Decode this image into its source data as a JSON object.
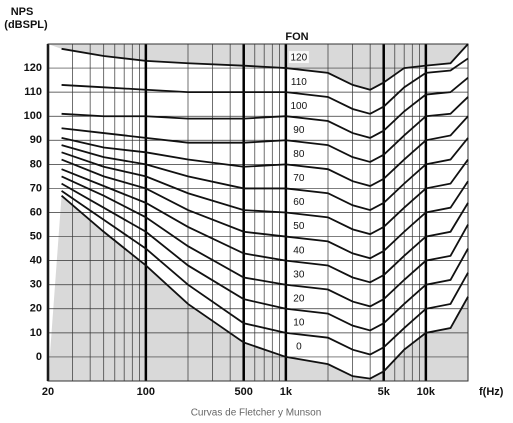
{
  "chart_data": {
    "type": "line",
    "title": "Curvas de Fletcher y Munson",
    "y_label": [
      "NPS",
      "(dBSPL)"
    ],
    "x_label": "f(Hz)",
    "legend_title": "FON",
    "log_x": true,
    "grid": true,
    "color": "#111111",
    "shade": "#d9d9d9",
    "xlim": [
      20,
      20000
    ],
    "ylim": [
      -10,
      130
    ],
    "xticks": [
      20,
      100,
      500,
      {
        "value": 1000,
        "label": "1k"
      },
      {
        "value": 5000,
        "label": "5k"
      },
      {
        "value": 10000,
        "label": "10k"
      }
    ],
    "xminorticks": [
      30,
      40,
      50,
      60,
      70,
      80,
      90,
      200,
      300,
      400,
      600,
      700,
      800,
      900,
      2000,
      3000,
      4000,
      6000,
      7000,
      8000,
      9000
    ],
    "yticks": [
      0,
      10,
      20,
      30,
      40,
      50,
      60,
      70,
      80,
      90,
      100,
      110,
      120
    ],
    "x": [
      25,
      50,
      100,
      200,
      500,
      1000,
      2000,
      3000,
      4000,
      5000,
      7000,
      10000,
      15000,
      20000
    ],
    "series": [
      {
        "name": "0",
        "values": [
          67,
          52,
          38,
          22,
          6,
          0,
          -3,
          -8,
          -9,
          -6,
          3,
          10,
          12,
          25
        ]
      },
      {
        "name": "10",
        "values": [
          69,
          57,
          45,
          30,
          14,
          10,
          8,
          3,
          1,
          4,
          12,
          20,
          22,
          35
        ]
      },
      {
        "name": "20",
        "values": [
          72,
          62,
          52,
          38,
          24,
          20,
          18,
          13,
          11,
          14,
          22,
          30,
          32,
          45
        ]
      },
      {
        "name": "30",
        "values": [
          75,
          67,
          58,
          46,
          33,
          30,
          28,
          23,
          21,
          24,
          32,
          40,
          42,
          55
        ]
      },
      {
        "name": "40",
        "values": [
          78,
          71,
          64,
          54,
          43,
          40,
          38,
          33,
          31,
          34,
          42,
          50,
          52,
          64
        ]
      },
      {
        "name": "50",
        "values": [
          82,
          75,
          70,
          61,
          52,
          50,
          48,
          43,
          41,
          44,
          52,
          60,
          62,
          73
        ]
      },
      {
        "name": "60",
        "values": [
          85,
          79,
          75,
          68,
          61,
          60,
          58,
          53,
          51,
          54,
          62,
          70,
          72,
          82
        ]
      },
      {
        "name": "70",
        "values": [
          88,
          83,
          80,
          75,
          70,
          70,
          68,
          63,
          61,
          64,
          72,
          80,
          82,
          91
        ]
      },
      {
        "name": "80",
        "values": [
          91,
          87,
          85,
          82,
          79,
          80,
          78,
          73,
          71,
          74,
          82,
          90,
          92,
          100
        ]
      },
      {
        "name": "90",
        "values": [
          95,
          93,
          91,
          89,
          89,
          90,
          88,
          83,
          81,
          84,
          92,
          100,
          101,
          108
        ]
      },
      {
        "name": "100",
        "values": [
          101,
          100,
          100,
          99,
          99,
          100,
          98,
          93,
          91,
          94,
          102,
          109,
          110,
          116
        ]
      },
      {
        "name": "110",
        "values": [
          113,
          112,
          111,
          110,
          110,
          110,
          108,
          103,
          101,
          104,
          112,
          118,
          119,
          124
        ]
      },
      {
        "name": "120",
        "values": [
          128,
          125,
          123,
          122,
          121,
          120,
          118,
          113,
          111,
          114,
          120,
          121,
          122,
          130
        ]
      }
    ]
  }
}
